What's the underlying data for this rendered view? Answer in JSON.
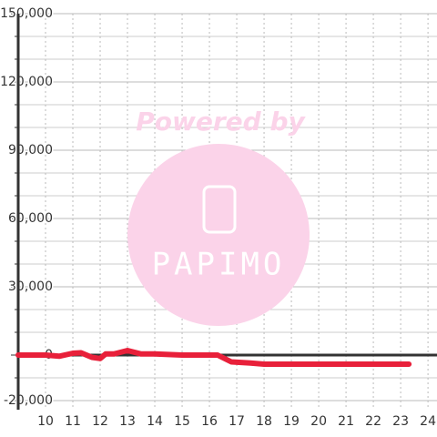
{
  "chart_data": {
    "type": "line",
    "watermark": {
      "caption": "Powered by",
      "brand": "PAPIMO"
    },
    "x": [
      9,
      10,
      10.5,
      11,
      11.3,
      11.7,
      12,
      12.2,
      12.5,
      13,
      13.5,
      14,
      15,
      16,
      16.3,
      16.8,
      17.5,
      18,
      20,
      23.3
    ],
    "series": [
      {
        "color": "#e8203a",
        "values": [
          0,
          0,
          -500,
          800,
          1000,
          -1000,
          -1500,
          500,
          500,
          2000,
          500,
          500,
          0,
          0,
          0,
          -3000,
          -3500,
          -4000,
          -4000,
          -4000
        ]
      }
    ],
    "xlim": [
      9,
      24.33
    ],
    "xticks": [
      10,
      11,
      12,
      13,
      14,
      15,
      16,
      17,
      18,
      19,
      20,
      21,
      22,
      23,
      24
    ],
    "ylim": [
      -24000,
      150000
    ],
    "yticks": [
      {
        "value": 150000,
        "label": "150,000"
      },
      {
        "value": 120000,
        "label": "120,000"
      },
      {
        "value": 90000,
        "label": "90,000"
      },
      {
        "value": 60000,
        "label": "60,000"
      },
      {
        "value": 30000,
        "label": "30,000"
      },
      0,
      {
        "value": -20000,
        "label": "-20,000"
      }
    ],
    "minor_yticks": [
      -10000,
      10000,
      20000,
      40000,
      50000,
      70000,
      80000,
      100000,
      110000,
      130000,
      140000
    ],
    "grid": true
  }
}
